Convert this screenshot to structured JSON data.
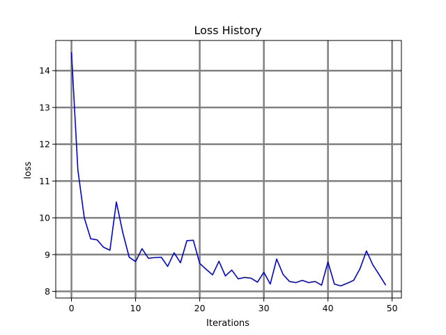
{
  "chart_data": {
    "type": "line",
    "title": "Loss History",
    "xlabel": "Iterations",
    "ylabel": "loss",
    "xlim": [
      -2.45,
      51.45
    ],
    "ylim": [
      7.82,
      14.82
    ],
    "x_ticks": [
      0,
      10,
      20,
      30,
      40,
      50
    ],
    "y_ticks": [
      8,
      9,
      10,
      11,
      12,
      13,
      14
    ],
    "grid": true,
    "line_color": "#0000cc",
    "grid_color": "#808080",
    "series": [
      {
        "x": [
          0,
          1,
          2,
          3,
          4,
          5,
          6,
          7,
          8,
          9,
          10,
          11,
          12,
          13,
          14,
          15,
          16,
          17,
          18,
          19,
          20,
          21,
          22,
          23,
          24,
          25,
          26,
          27,
          28,
          29,
          30,
          31,
          32,
          33,
          34,
          35,
          36,
          37,
          38,
          39,
          40,
          41,
          42,
          43,
          44,
          45,
          46,
          47,
          48,
          49
        ],
        "values": [
          14.5,
          11.3,
          10.0,
          9.43,
          9.4,
          9.2,
          9.12,
          10.43,
          9.6,
          8.93,
          8.81,
          9.16,
          8.9,
          8.92,
          8.93,
          8.68,
          9.05,
          8.78,
          9.38,
          9.39,
          8.76,
          8.6,
          8.45,
          8.82,
          8.42,
          8.58,
          8.34,
          8.38,
          8.36,
          8.25,
          8.52,
          8.2,
          8.88,
          8.46,
          8.27,
          8.24,
          8.3,
          8.24,
          8.27,
          8.17,
          8.8,
          8.2,
          8.15,
          8.22,
          8.3,
          8.62,
          9.1,
          8.72,
          8.45,
          8.17
        ]
      }
    ]
  }
}
